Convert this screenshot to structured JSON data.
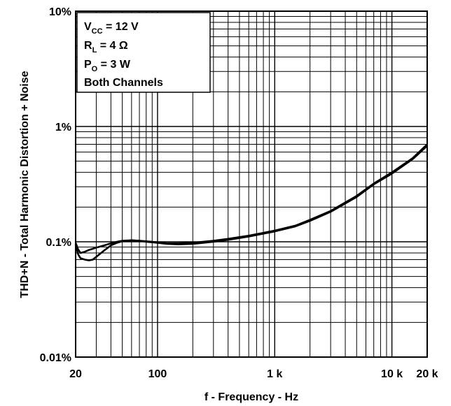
{
  "chart_data": {
    "type": "line",
    "title": "",
    "xlabel": "f - Frequency - Hz",
    "ylabel": "THD+N - Total Harmonic Distortion + Noise",
    "x_scale": "log",
    "y_scale": "log",
    "xlim": [
      20,
      20000
    ],
    "ylim": [
      0.01,
      10
    ],
    "x_ticks": [
      {
        "value": 20,
        "label": "20"
      },
      {
        "value": 100,
        "label": "100"
      },
      {
        "value": 1000,
        "label": "1 k"
      },
      {
        "value": 10000,
        "label": "10 k"
      },
      {
        "value": 20000,
        "label": "20 k"
      }
    ],
    "y_ticks": [
      {
        "value": 0.01,
        "label": "0.01%"
      },
      {
        "value": 0.1,
        "label": "0.1%"
      },
      {
        "value": 1,
        "label": "1%"
      },
      {
        "value": 10,
        "label": "10%"
      }
    ],
    "grid": true,
    "legend": {
      "placement": "top-left",
      "vcc": {
        "main": "V",
        "sub": "CC",
        "rest": " = 12 V"
      },
      "rl": {
        "main": "R",
        "sub": "L",
        "rest": " = 4 Ω"
      },
      "po": {
        "main": "P",
        "sub": "O",
        "rest": " = 3 W"
      },
      "channels": "Both Channels"
    },
    "series": [
      {
        "x": [
          20,
          21,
          22,
          24,
          26,
          28,
          30,
          35,
          40,
          45,
          50,
          60,
          70,
          80,
          100,
          120,
          150,
          200,
          300,
          400,
          600,
          1000,
          1500,
          2000,
          3000,
          5000,
          7000,
          10000,
          15000,
          20000
        ],
        "y": [
          0.098,
          0.086,
          0.08,
          0.082,
          0.085,
          0.087,
          0.089,
          0.093,
          0.097,
          0.1,
          0.102,
          0.103,
          0.102,
          0.101,
          0.099,
          0.097,
          0.097,
          0.098,
          0.102,
          0.106,
          0.113,
          0.125,
          0.138,
          0.155,
          0.185,
          0.25,
          0.32,
          0.4,
          0.53,
          0.7
        ]
      },
      {
        "x": [
          20,
          21,
          22,
          24,
          26,
          28,
          30,
          35,
          40,
          45,
          50,
          60,
          70,
          80,
          100,
          120,
          150,
          200,
          300,
          400,
          600,
          1000,
          1500,
          2000,
          3000,
          5000,
          7000,
          10000,
          15000,
          20000
        ],
        "y": [
          0.095,
          0.078,
          0.072,
          0.07,
          0.069,
          0.07,
          0.074,
          0.084,
          0.093,
          0.098,
          0.101,
          0.103,
          0.102,
          0.1,
          0.098,
          0.096,
          0.095,
          0.096,
          0.1,
          0.104,
          0.111,
          0.123,
          0.136,
          0.152,
          0.182,
          0.245,
          0.315,
          0.39,
          0.52,
          0.68
        ]
      }
    ]
  }
}
